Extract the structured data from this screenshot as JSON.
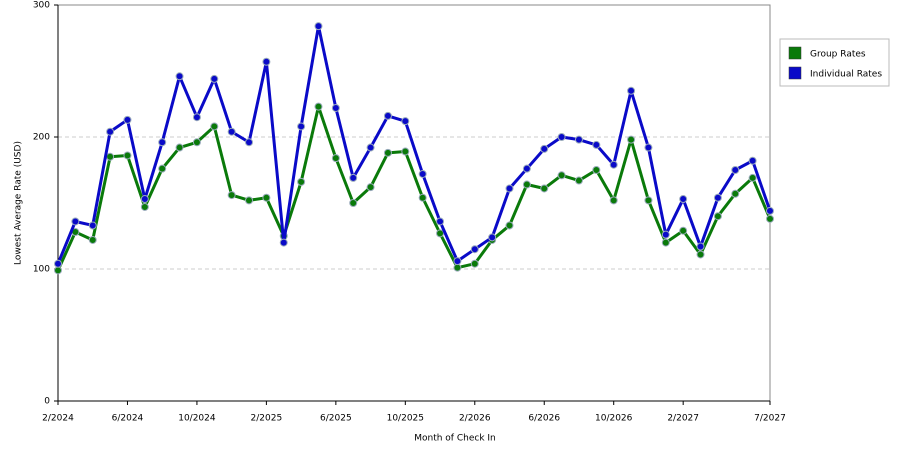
{
  "chart_data": {
    "type": "line",
    "x_label": "Month of Check In",
    "y_label": "Lowest Average Rate (USD)",
    "categories": [
      "2/2024",
      null,
      null,
      null,
      "6/2024",
      null,
      null,
      null,
      "10/2024",
      null,
      null,
      null,
      "2/2025",
      null,
      null,
      null,
      "6/2025",
      null,
      null,
      null,
      "10/2025",
      null,
      null,
      null,
      "2/2026",
      null,
      null,
      null,
      "6/2026",
      null,
      null,
      null,
      "10/2026",
      null,
      null,
      null,
      "2/2027",
      null,
      null,
      null,
      null,
      "7/2027"
    ],
    "series": [
      {
        "name": "Group Rates",
        "color": "#0a7a0a",
        "values": [
          99,
          128,
          122,
          185,
          186,
          147,
          176,
          192,
          196,
          208,
          156,
          152,
          154,
          125,
          166,
          223,
          184,
          150,
          162,
          188,
          189,
          154,
          127,
          101,
          104,
          122,
          133,
          164,
          161,
          171,
          167,
          175,
          152,
          198,
          152,
          120,
          129,
          111,
          140,
          157,
          169,
          138
        ]
      },
      {
        "name": "Individual Rates",
        "color": "#0a0ac8",
        "values": [
          104,
          136,
          133,
          204,
          213,
          153,
          196,
          246,
          215,
          244,
          204,
          196,
          257,
          120,
          208,
          284,
          222,
          169,
          192,
          216,
          212,
          172,
          136,
          106,
          115,
          124,
          161,
          176,
          191,
          200,
          198,
          194,
          179,
          235,
          192,
          126,
          153,
          117,
          154,
          175,
          182,
          144
        ]
      }
    ],
    "ylim": [
      0,
      300
    ],
    "yticks": [
      0,
      100,
      200,
      300
    ],
    "grid": true,
    "legend": "right"
  }
}
